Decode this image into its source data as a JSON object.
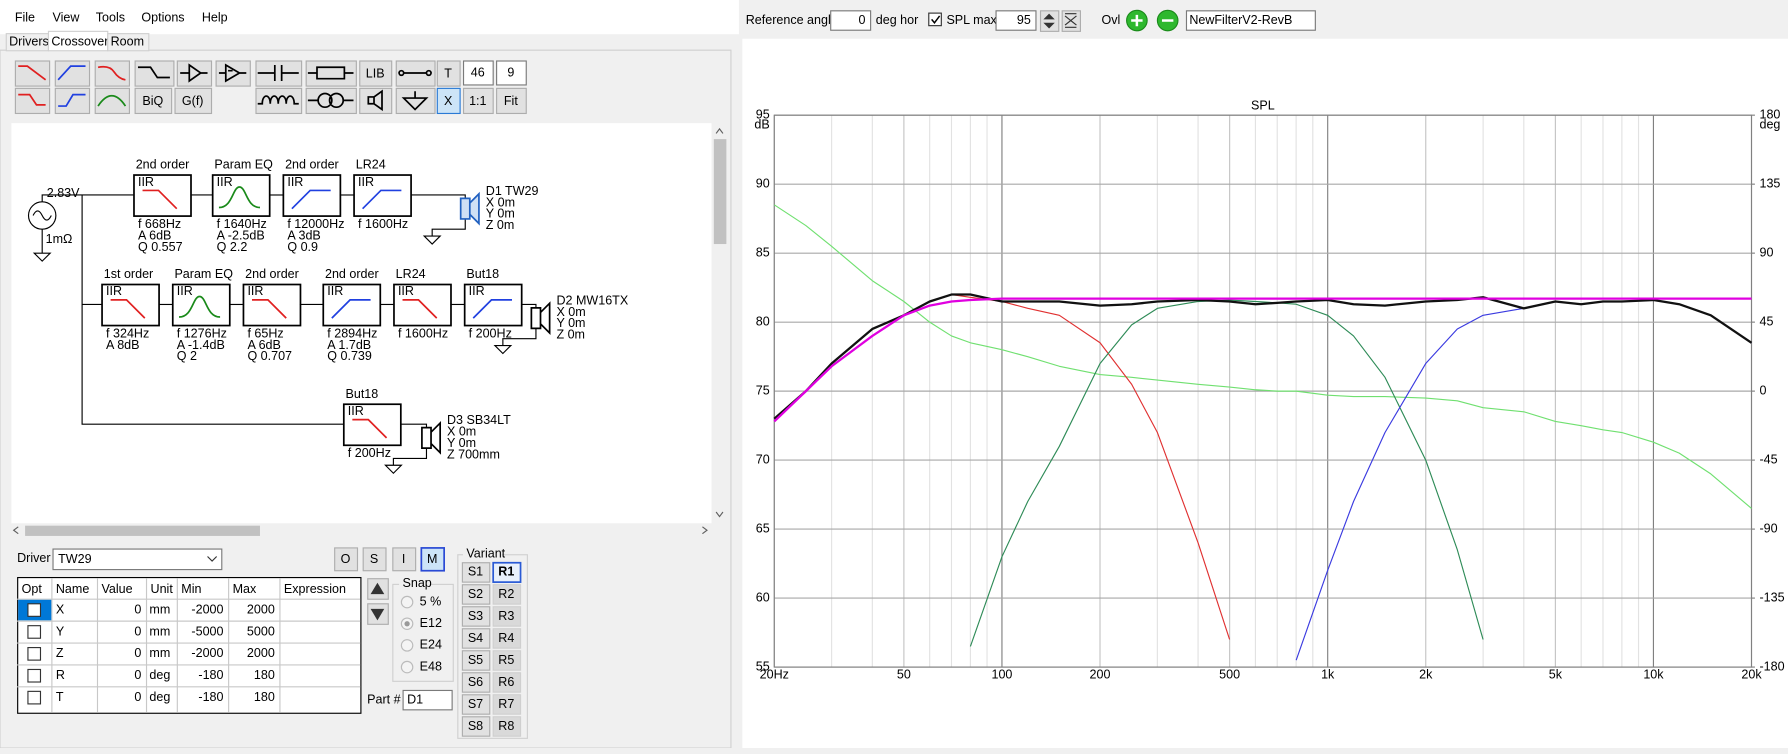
{
  "menu": [
    "File",
    "View",
    "Tools",
    "Options",
    "Help"
  ],
  "tabs": [
    "Drivers",
    "Crossover",
    "Room"
  ],
  "toolbar": {
    "lib": "LIB",
    "t": "T",
    "fields": [
      46,
      9
    ],
    "biq": "BiQ",
    "gf": "G(f)",
    "x": "X",
    "ratio": "1:1",
    "fit": "Fit"
  },
  "schematic": {
    "source": {
      "voltage": "2.83V",
      "resistance": "1mΩ"
    },
    "rows": [
      {
        "blocks": [
          {
            "title": "2nd order",
            "type": "IIR",
            "icon": "lowpass",
            "params": [
              "f 668Hz",
              "A 6dB",
              "Q 0.557"
            ]
          },
          {
            "title": "Param EQ",
            "type": "IIR",
            "icon": "peak",
            "params": [
              "f 1640Hz",
              "A -2.5dB",
              "Q 2.2"
            ]
          },
          {
            "title": "2nd order",
            "type": "IIR",
            "icon": "highpass",
            "params": [
              "f 12000Hz",
              "A 3dB",
              "Q 0.9"
            ]
          },
          {
            "title": "LR24",
            "type": "IIR",
            "icon": "highpass",
            "params": [
              "f 1600Hz"
            ]
          }
        ],
        "driver": {
          "name": "D1 TW29",
          "position": [
            "X 0m",
            "Y 0m",
            "Z 0m"
          ]
        }
      },
      {
        "blocks": [
          {
            "title": "1st order",
            "type": "IIR",
            "icon": "lowpass",
            "params": [
              "f 324Hz",
              "A 8dB"
            ]
          },
          {
            "title": "Param EQ",
            "type": "IIR",
            "icon": "peak",
            "params": [
              "f 1276Hz",
              "A -1.4dB",
              "Q 2"
            ]
          },
          {
            "title": "2nd order",
            "type": "IIR",
            "icon": "lowpass",
            "params": [
              "f 65Hz",
              "A 6dB",
              "Q 0.707"
            ]
          },
          {
            "title": "2nd order",
            "type": "IIR",
            "icon": "highpass",
            "params": [
              "f 2894Hz",
              "A 1.7dB",
              "Q 0.739"
            ]
          },
          {
            "title": "LR24",
            "type": "IIR",
            "icon": "lowpass",
            "params": [
              "f 1600Hz"
            ]
          },
          {
            "title": "But18",
            "type": "IIR",
            "icon": "highpass",
            "params": [
              "f 200Hz"
            ]
          }
        ],
        "driver": {
          "name": "D2 MW16TX",
          "position": [
            "X 0m",
            "Y 0m",
            "Z 0m"
          ]
        }
      },
      {
        "blocks": [
          {
            "title": "But18",
            "type": "IIR",
            "icon": "lowpass",
            "params": [
              "f 200Hz"
            ]
          }
        ],
        "driver": {
          "name": "D3 SB34LT",
          "position": [
            "X 0m",
            "Y 0m",
            "Z 700mm"
          ]
        }
      }
    ]
  },
  "driver_panel": {
    "label": "Driver",
    "selected": "TW29",
    "modes": [
      "O",
      "S",
      "I",
      "M"
    ],
    "active_mode": 3,
    "table": {
      "headers": [
        "Opt",
        "Name",
        "Value",
        "Unit",
        "Min",
        "Max",
        "Expression"
      ],
      "rows": [
        [
          "X",
          0,
          "mm",
          -2000,
          2000
        ],
        [
          "Y",
          0,
          "mm",
          -5000,
          5000
        ],
        [
          "Z",
          0,
          "mm",
          -2000,
          2000
        ],
        [
          "R",
          0,
          "deg",
          -180,
          180
        ],
        [
          "T",
          0,
          "deg",
          -180,
          180
        ]
      ]
    },
    "snap": {
      "title": "Snap",
      "options": [
        "5 %",
        "E12",
        "E24",
        "E48"
      ],
      "selected": 1
    },
    "part_label": "Part #",
    "part": "D1",
    "variant": {
      "title": "Variant",
      "s": [
        "S1",
        "S2",
        "S3",
        "S4",
        "S5",
        "S6",
        "S7",
        "S8"
      ],
      "r": [
        "R1",
        "R2",
        "R3",
        "R4",
        "R5",
        "R6",
        "R7",
        "R8"
      ],
      "active": 0
    }
  },
  "right_toolbar": {
    "reference_angle_label": "Reference angle",
    "reference_angle": 0,
    "angle_unit": "deg hor",
    "spl_max_label": "SPL max",
    "spl_max": 95,
    "ovl_label": "Ovl",
    "filename": "NewFilterV2-RevB"
  },
  "chart_data": {
    "type": "line",
    "title": "SPL",
    "xscale": "log",
    "x": [
      20,
      25,
      30,
      40,
      50,
      60,
      70,
      80,
      100,
      120,
      150,
      200,
      250,
      300,
      400,
      500,
      600,
      700,
      800,
      1000,
      1200,
      1500,
      2000,
      2500,
      3000,
      4000,
      5000,
      6000,
      7000,
      8000,
      10000,
      12000,
      15000,
      20000
    ],
    "xlim": [
      20,
      20000
    ],
    "xticks": [
      {
        "value": 20,
        "label": "20Hz"
      },
      50,
      100,
      200,
      500,
      {
        "value": 1000,
        "label": "1k"
      },
      {
        "value": 2000,
        "label": "2k"
      },
      {
        "value": 5000,
        "label": "5k"
      },
      {
        "value": 10000,
        "label": "10k"
      },
      {
        "value": 20000,
        "label": "20k"
      }
    ],
    "x_minor_grid": [
      30,
      40,
      60,
      70,
      80,
      90,
      300,
      400,
      600,
      700,
      800,
      900,
      3000,
      4000,
      6000,
      7000,
      8000,
      9000
    ],
    "ylim": [
      55,
      95
    ],
    "yticks": [
      55,
      60,
      65,
      70,
      75,
      80,
      85,
      90,
      95
    ],
    "ylabel": "dB",
    "y2lim": [
      -180,
      180
    ],
    "y2ticks": [
      -180,
      -135,
      -90,
      -45,
      0,
      45,
      90,
      135,
      180
    ],
    "y2label": "deg",
    "grid": true,
    "series": [
      {
        "color": "#70e070",
        "width": 1,
        "values": [
          88.5,
          87,
          85.5,
          83,
          81.5,
          80,
          79,
          78.5,
          78,
          77.5,
          76.8,
          76.2,
          76,
          75.8,
          75.5,
          75.3,
          75.1,
          75,
          75,
          74.7,
          74.6,
          74.6,
          74.5,
          74.3,
          73.8,
          73.5,
          72.8,
          72.5,
          72.2,
          72,
          71.3,
          70.5,
          69,
          66.5
        ]
      },
      {
        "color": "#e03030",
        "width": 1,
        "values": [
          73,
          75,
          77,
          79.5,
          80.5,
          81.5,
          82,
          81.8,
          81.5,
          81,
          80.5,
          78.5,
          75.5,
          72,
          64,
          57,
          null,
          null,
          null,
          null,
          null,
          null,
          null,
          null,
          null,
          null,
          null,
          null,
          null,
          null,
          null,
          null,
          null,
          null
        ]
      },
      {
        "color": "#2e8b57",
        "width": 1,
        "values": [
          null,
          null,
          null,
          null,
          null,
          null,
          null,
          56.5,
          63,
          67,
          71,
          77,
          79.8,
          81,
          81.5,
          81.6,
          81.5,
          81.4,
          81.3,
          80.5,
          79,
          76,
          70,
          63.5,
          57,
          null,
          null,
          null,
          null,
          null,
          null,
          null,
          null,
          null
        ]
      },
      {
        "color": "#3a3ae0",
        "width": 1,
        "values": [
          null,
          null,
          null,
          null,
          null,
          null,
          null,
          null,
          null,
          null,
          null,
          null,
          null,
          null,
          null,
          null,
          null,
          null,
          55.5,
          62,
          67,
          72,
          77,
          79.5,
          80.5,
          81,
          81.5,
          81.3,
          81.5,
          81.5,
          81.6,
          81.3,
          80.5,
          78.5
        ]
      },
      {
        "color": "#111111",
        "width": 2,
        "values": [
          73,
          75,
          77,
          79.5,
          80.5,
          81.5,
          82,
          82,
          81.5,
          81.5,
          81.5,
          81.2,
          81.3,
          81.5,
          81.6,
          81.5,
          81.3,
          81.4,
          81.5,
          81.6,
          81.3,
          81.2,
          81.5,
          81.6,
          81.8,
          81,
          81.5,
          81.3,
          81.5,
          81.5,
          81.6,
          81.3,
          80.5,
          78.5
        ]
      },
      {
        "color": "#e000e0",
        "width": 2,
        "values": [
          72.8,
          75,
          76.8,
          79,
          80.5,
          81.2,
          81.5,
          81.6,
          81.7,
          81.7,
          81.7,
          81.7,
          81.7,
          81.7,
          81.7,
          81.7,
          81.7,
          81.7,
          81.7,
          81.7,
          81.7,
          81.7,
          81.7,
          81.7,
          81.7,
          81.7,
          81.7,
          81.7,
          81.7,
          81.7,
          81.7,
          81.7,
          81.7,
          81.7
        ]
      }
    ]
  }
}
